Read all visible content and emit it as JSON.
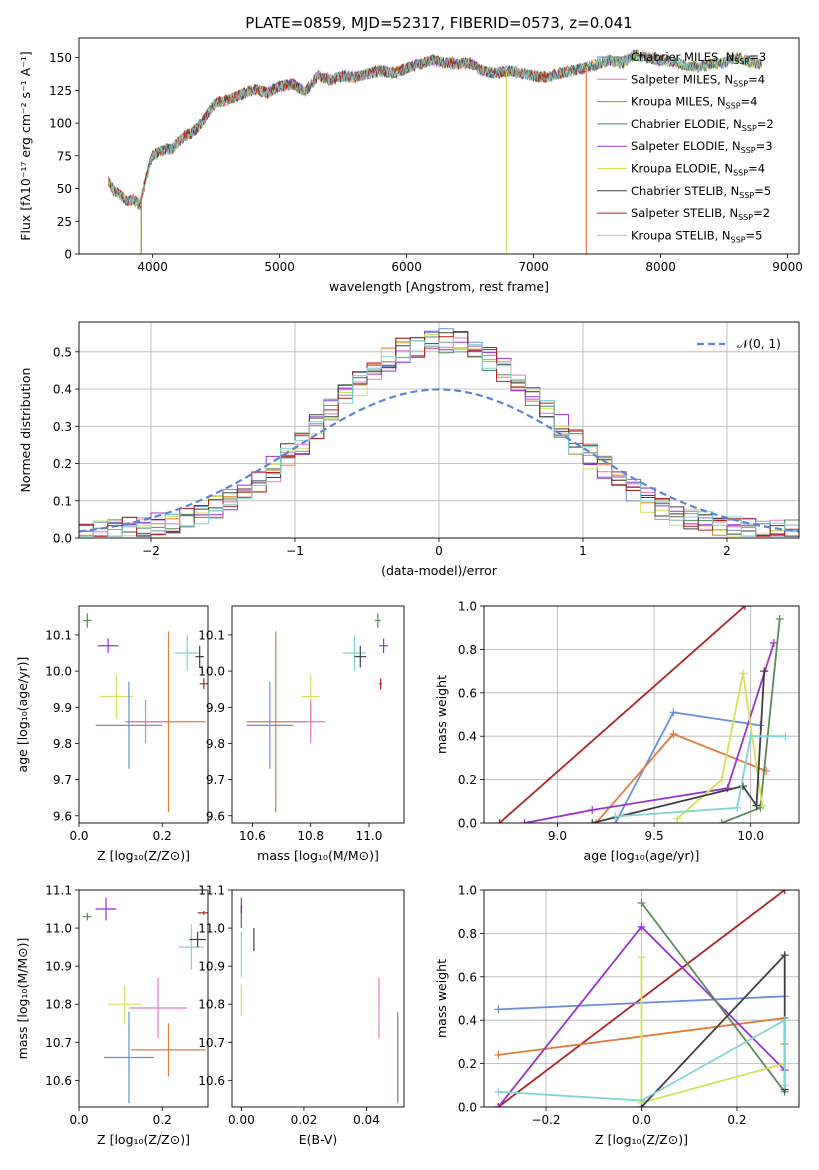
{
  "chart_data": [
    {
      "id": "spectrum",
      "type": "line",
      "title": "PLATE=0859, MJD=52317, FIBERID=0573, z=0.041",
      "xlabel": "wavelength [Angstrom, rest frame]",
      "ylabel": "Flux [fλ10⁻¹⁷ erg cm⁻² s⁻¹ A⁻¹]",
      "xlim": [
        3420,
        9090
      ],
      "ylim": [
        0,
        165
      ],
      "xticks": [
        "4000",
        "5000",
        "6000",
        "7000",
        "8000",
        "9000"
      ],
      "yticks": [
        "0",
        "25",
        "50",
        "75",
        "100",
        "125",
        "150"
      ],
      "grid": false,
      "legend": "top-right",
      "continuum": {
        "x": [
          3650,
          3700,
          3750,
          3800,
          3850,
          3900,
          3950,
          4000,
          4050,
          4100,
          4150,
          4200,
          4250,
          4300,
          4350,
          4400,
          4450,
          4500,
          4600,
          4700,
          4800,
          4900,
          5000,
          5100,
          5200,
          5300,
          5400,
          5500,
          5600,
          5700,
          5800,
          5900,
          6000,
          6100,
          6200,
          6300,
          6400,
          6500,
          6600,
          6700,
          6800,
          6900,
          7000,
          7100,
          7200,
          7300,
          7400,
          7500,
          7600,
          7700,
          7800,
          7900,
          8000,
          8100,
          8200,
          8300,
          8400,
          8500,
          8600,
          8700,
          8800
        ],
        "y": [
          55,
          48,
          45,
          40,
          42,
          37,
          60,
          75,
          78,
          80,
          80,
          85,
          90,
          92,
          96,
          102,
          110,
          116,
          118,
          122,
          126,
          123,
          128,
          130,
          124,
          136,
          133,
          136,
          135,
          138,
          140,
          138,
          142,
          145,
          148,
          146,
          145,
          146,
          140,
          138,
          140,
          138,
          136,
          135,
          138,
          140,
          142,
          145,
          148,
          146,
          152,
          150,
          148,
          147,
          144,
          143,
          145,
          146,
          150,
          147,
          145
        ]
      },
      "spike_x": [
        3910,
        6785,
        7415
      ],
      "series": [
        {
          "name": "Chabrier MILES, N$_{SSP}$=3",
          "color": "#5b8fa8"
        },
        {
          "name": "Salpeter MILES, N$_{SSP}$=4",
          "color": "#e377c2"
        },
        {
          "name": "Kroupa MILES, N$_{SSP}$=4",
          "color": "#b8860b"
        },
        {
          "name": "Chabrier ELODIE, N$_{SSP}$=2",
          "color": "#2e8b57"
        },
        {
          "name": "Salpeter ELODIE, N$_{SSP}$=3",
          "color": "#9932cc"
        },
        {
          "name": "Kroupa ELODIE, N$_{SSP}$=4",
          "color": "#d4e157"
        },
        {
          "name": "Chabrier STELIB, N$_{SSP}$=5",
          "color": "#404040"
        },
        {
          "name": "Salpeter STELIB, N$_{SSP}$=2",
          "color": "#b22222"
        },
        {
          "name": "Kroupa STELIB, N$_{SSP}$=5",
          "color": "#80d4d4"
        }
      ]
    },
    {
      "id": "histogram",
      "type": "bar",
      "xlabel": "(data-model)/error",
      "ylabel": "Normed distribution",
      "xlim": [
        -2.5,
        2.5
      ],
      "ylim": [
        0,
        0.58
      ],
      "xticks": [
        "−2",
        "−1",
        "0",
        "1",
        "2"
      ],
      "yticks": [
        "0.0",
        "0.1",
        "0.2",
        "0.3",
        "0.4",
        "0.5"
      ],
      "grid": true,
      "legend_label": "𝒩(0, 1)",
      "legend": "top-right",
      "bin_width": 0.1,
      "bin_start": -2.5,
      "normal_curve": {
        "mean": 0,
        "sigma": 1,
        "color": "#5b84d6"
      },
      "hist_colors": [
        "#6a8fd8",
        "#e07b39",
        "#e377c2",
        "#5a8a5a",
        "#9932cc",
        "#d4e157",
        "#404040",
        "#b22222",
        "#80d4d4"
      ]
    },
    {
      "id": "age-vs-Z",
      "type": "scatter",
      "xlabel": "Z [log₁₀(Z/Z⊙)]",
      "ylabel": "age  [log₁₀(age/yr)]",
      "xlim": [
        0,
        0.31
      ],
      "ylim": [
        9.58,
        10.18
      ],
      "xticks": [
        "0.0",
        "0.2"
      ],
      "yticks": [
        "9.6",
        "9.7",
        "9.8",
        "9.9",
        "10.0",
        "10.1"
      ],
      "points": [
        {
          "x": 0.02,
          "y": 10.14,
          "ex": 0.01,
          "ey": 0.02,
          "color": "#5a8a5a"
        },
        {
          "x": 0.07,
          "y": 10.07,
          "ex": 0.025,
          "ey": 0.02,
          "color": "#9932cc"
        },
        {
          "x": 0.26,
          "y": 10.05,
          "ex": 0.03,
          "ey": 0.05,
          "color": "#80d4d4"
        },
        {
          "x": 0.29,
          "y": 10.04,
          "ex": 0.01,
          "ey": 0.03,
          "color": "#404040"
        },
        {
          "x": 0.3,
          "y": 9.965,
          "ex": 0.01,
          "ey": 0.015,
          "color": "#b22222"
        },
        {
          "x": 0.09,
          "y": 9.93,
          "ex": 0.04,
          "ey": 0.06,
          "color": "#d4e157"
        },
        {
          "x": 0.215,
          "y": 9.86,
          "ex": 0.09,
          "ey": 0.25,
          "color": "#e07b39"
        },
        {
          "x": 0.16,
          "y": 9.86,
          "ex": 0.05,
          "ey": 0.06,
          "color": "#e377c2"
        },
        {
          "x": 0.12,
          "y": 9.85,
          "ex": 0.08,
          "ey": 0.12,
          "color": "#6a8fd8"
        }
      ]
    },
    {
      "id": "age-vs-mass",
      "type": "scatter",
      "xlabel": "mass [log₁₀(M/M⊙)]",
      "ylabel": "",
      "xlim": [
        10.53,
        11.12
      ],
      "ylim": [
        9.58,
        10.18
      ],
      "xticks": [
        "10.6",
        "10.8",
        "11.0"
      ],
      "yticks": [
        "9.6",
        "9.7",
        "9.8",
        "9.9",
        "10.0",
        "10.1"
      ],
      "points": [
        {
          "x": 11.03,
          "y": 10.14,
          "ex": 0.01,
          "ey": 0.02,
          "color": "#5a8a5a"
        },
        {
          "x": 11.05,
          "y": 10.07,
          "ex": 0.015,
          "ey": 0.02,
          "color": "#9932cc"
        },
        {
          "x": 10.95,
          "y": 10.05,
          "ex": 0.04,
          "ey": 0.05,
          "color": "#80d4d4"
        },
        {
          "x": 10.97,
          "y": 10.04,
          "ex": 0.02,
          "ey": 0.03,
          "color": "#404040"
        },
        {
          "x": 11.04,
          "y": 9.965,
          "ex": 0.005,
          "ey": 0.015,
          "color": "#b22222"
        },
        {
          "x": 10.8,
          "y": 9.93,
          "ex": 0.03,
          "ey": 0.06,
          "color": "#d4e157"
        },
        {
          "x": 10.68,
          "y": 9.86,
          "ex": 0.1,
          "ey": 0.25,
          "color": "#e07b39"
        },
        {
          "x": 10.8,
          "y": 9.86,
          "ex": 0.05,
          "ey": 0.06,
          "color": "#e377c2"
        },
        {
          "x": 10.66,
          "y": 9.85,
          "ex": 0.08,
          "ey": 0.12,
          "color": "#6a8fd8"
        }
      ]
    },
    {
      "id": "massweight-vs-age",
      "type": "line",
      "xlabel": "age  [log₁₀(age/yr)]",
      "ylabel": "mass weight",
      "xlim": [
        8.62,
        10.25
      ],
      "ylim": [
        0,
        1
      ],
      "xticks": [
        "9.0",
        "9.5",
        "10.0"
      ],
      "yticks": [
        "0.0",
        "0.2",
        "0.4",
        "0.6",
        "0.8",
        "1.0"
      ],
      "grid": true,
      "series": [
        {
          "color": "#b22222",
          "x": [
            8.7,
            9.97
          ],
          "y": [
            0.0,
            1.0
          ]
        },
        {
          "color": "#6a8fd8",
          "x": [
            9.3,
            9.6,
            10.05
          ],
          "y": [
            0.0,
            0.51,
            0.45
          ]
        },
        {
          "color": "#e07b39",
          "x": [
            9.2,
            9.6,
            10.08
          ],
          "y": [
            0.0,
            0.41,
            0.24
          ]
        },
        {
          "color": "#9932cc",
          "x": [
            8.83,
            9.18,
            9.88,
            10.12
          ],
          "y": [
            0.0,
            0.06,
            0.16,
            0.83
          ]
        },
        {
          "color": "#5a8a5a",
          "x": [
            9.85,
            10.05,
            10.15
          ],
          "y": [
            0.0,
            0.07,
            0.94
          ]
        },
        {
          "color": "#d4e157",
          "x": [
            9.62,
            9.85,
            9.96,
            10.06
          ],
          "y": [
            0.02,
            0.2,
            0.69,
            0.08
          ]
        },
        {
          "color": "#404040",
          "x": [
            9.18,
            9.96,
            10.03,
            10.07
          ],
          "y": [
            0.0,
            0.17,
            0.08,
            0.7
          ]
        },
        {
          "color": "#80d4d4",
          "x": [
            9.3,
            9.93,
            10.0,
            10.18
          ],
          "y": [
            0.03,
            0.07,
            0.4,
            0.4
          ]
        }
      ]
    },
    {
      "id": "mass-vs-Z",
      "type": "scatter",
      "xlabel": "Z [log₁₀(Z/Z⊙)]",
      "ylabel": "mass [log₁₀(M/M⊙)]",
      "xlim": [
        0,
        0.31
      ],
      "ylim": [
        10.53,
        11.1
      ],
      "xticks": [
        "0.0",
        "0.2"
      ],
      "yticks": [
        "10.6",
        "10.7",
        "10.8",
        "10.9",
        "11.0",
        "11.1"
      ],
      "points": [
        {
          "x": 0.02,
          "y": 11.03,
          "ex": 0.01,
          "ey": 0.01,
          "color": "#5a8a5a"
        },
        {
          "x": 0.065,
          "y": 11.05,
          "ex": 0.025,
          "ey": 0.03,
          "color": "#9932cc"
        },
        {
          "x": 0.3,
          "y": 11.04,
          "ex": 0.015,
          "ey": 0.005,
          "color": "#b22222"
        },
        {
          "x": 0.27,
          "y": 10.95,
          "ex": 0.03,
          "ey": 0.06,
          "color": "#80d4d4"
        },
        {
          "x": 0.285,
          "y": 10.97,
          "ex": 0.02,
          "ey": 0.02,
          "color": "#404040"
        },
        {
          "x": 0.11,
          "y": 10.8,
          "ex": 0.04,
          "ey": 0.05,
          "color": "#d4e157"
        },
        {
          "x": 0.19,
          "y": 10.79,
          "ex": 0.07,
          "ey": 0.08,
          "color": "#e377c2"
        },
        {
          "x": 0.215,
          "y": 10.68,
          "ex": 0.09,
          "ey": 0.07,
          "color": "#e07b39"
        },
        {
          "x": 0.12,
          "y": 10.66,
          "ex": 0.06,
          "ey": 0.12,
          "color": "#6a8fd8"
        }
      ]
    },
    {
      "id": "mass-vs-EBV",
      "type": "scatter",
      "xlabel": "E(B-V)",
      "ylabel": "",
      "xlim": [
        -0.003,
        0.052
      ],
      "ylim": [
        10.53,
        11.1
      ],
      "xticks": [
        "0.00",
        "0.02",
        "0.04"
      ],
      "yticks": [
        "10.6",
        "10.7",
        "10.8",
        "10.9",
        "11.0",
        "11.1"
      ],
      "points": [
        {
          "x": 0.0,
          "y": 11.04,
          "ex": 0,
          "ey": 0.04,
          "color": "#9932cc"
        },
        {
          "x": 0.0,
          "y": 11.03,
          "ex": 0,
          "ey": 0.02,
          "color": "#5a8a5a"
        },
        {
          "x": 0.004,
          "y": 10.97,
          "ex": 0,
          "ey": 0.03,
          "color": "#404040"
        },
        {
          "x": 0.0,
          "y": 10.93,
          "ex": 0,
          "ey": 0.06,
          "color": "#80d4d4"
        },
        {
          "x": 0.0,
          "y": 10.81,
          "ex": 0,
          "ey": 0.04,
          "color": "#d4e157"
        },
        {
          "x": 0.0,
          "y": 11.05,
          "ex": 0,
          "ey": 0.01,
          "color": "#b22222"
        },
        {
          "x": 0.044,
          "y": 10.79,
          "ex": 0,
          "ey": 0.08,
          "color": "#e377c2"
        },
        {
          "x": 0.05,
          "y": 10.66,
          "ex": 0,
          "ey": 0.11,
          "color": "#e07b39"
        },
        {
          "x": 0.05,
          "y": 10.66,
          "ex": 0,
          "ey": 0.12,
          "color": "#6a8fd8"
        }
      ]
    },
    {
      "id": "massweight-vs-Z",
      "type": "line",
      "xlabel": "Z [log₁₀(Z/Z⊙)]",
      "ylabel": "mass weight",
      "xlim": [
        -0.33,
        0.33
      ],
      "ylim": [
        0,
        1
      ],
      "xticks": [
        "−0.2",
        "0.0",
        "0.2"
      ],
      "yticks": [
        "0.0",
        "0.2",
        "0.4",
        "0.6",
        "0.8",
        "1.0"
      ],
      "grid": true,
      "series": [
        {
          "color": "#b22222",
          "x": [
            -0.3,
            0.3
          ],
          "y": [
            0.0,
            1.0
          ]
        },
        {
          "color": "#6a8fd8",
          "x": [
            -0.3,
            0.3
          ],
          "y": [
            0.45,
            0.51
          ]
        },
        {
          "color": "#e07b39",
          "x": [
            -0.3,
            0.3,
            0.3
          ],
          "y": [
            0.24,
            0.41,
            0.29
          ]
        },
        {
          "color": "#9932cc",
          "x": [
            -0.3,
            0.0,
            0.3
          ],
          "y": [
            0.0,
            0.83,
            0.17
          ]
        },
        {
          "color": "#5a8a5a",
          "x": [
            0.0,
            0.3
          ],
          "y": [
            0.94,
            0.07
          ]
        },
        {
          "color": "#d4e157",
          "x": [
            0.0,
            0.0,
            0.3
          ],
          "y": [
            0.69,
            0.02,
            0.2
          ]
        },
        {
          "color": "#404040",
          "x": [
            0.0,
            0.3,
            0.3
          ],
          "y": [
            0.0,
            0.7,
            0.08
          ]
        },
        {
          "color": "#80d4d4",
          "x": [
            -0.3,
            0.0,
            0.3,
            0.3
          ],
          "y": [
            0.07,
            0.03,
            0.4,
            0.1
          ]
        }
      ]
    }
  ]
}
